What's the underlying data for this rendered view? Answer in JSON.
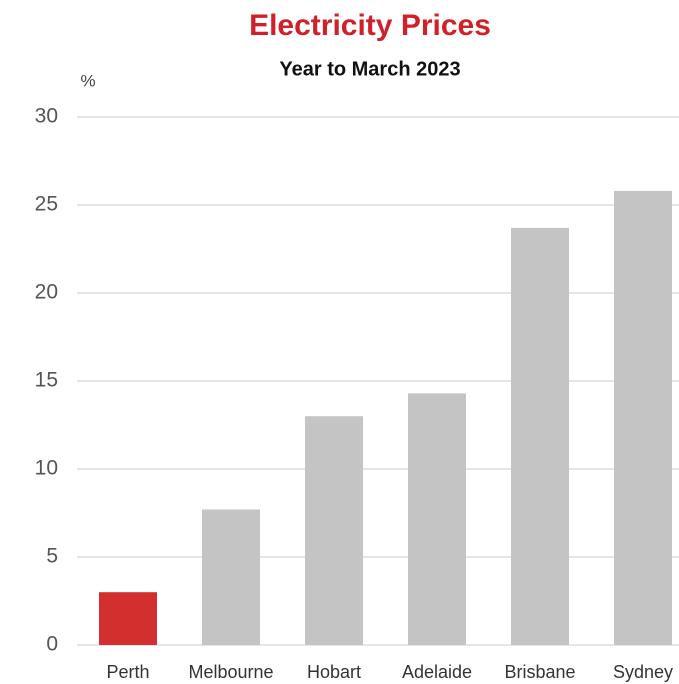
{
  "chart_data": {
    "type": "bar",
    "title": "Electricity Prices",
    "subtitle": "Year to March 2023",
    "y_label": "%",
    "categories": [
      "Perth",
      "Melbourne",
      "Hobart",
      "Adelaide",
      "Brisbane",
      "Sydney"
    ],
    "values": [
      3,
      7.7,
      13,
      14.3,
      23.7,
      25.8
    ],
    "colors": [
      "#d32f2f",
      "#c4c4c4",
      "#c4c4c4",
      "#c4c4c4",
      "#c4c4c4",
      "#c4c4c4"
    ],
    "ylim": [
      0,
      30
    ],
    "yticks": [
      0,
      5,
      10,
      15,
      20,
      25,
      30
    ],
    "grid": true
  }
}
